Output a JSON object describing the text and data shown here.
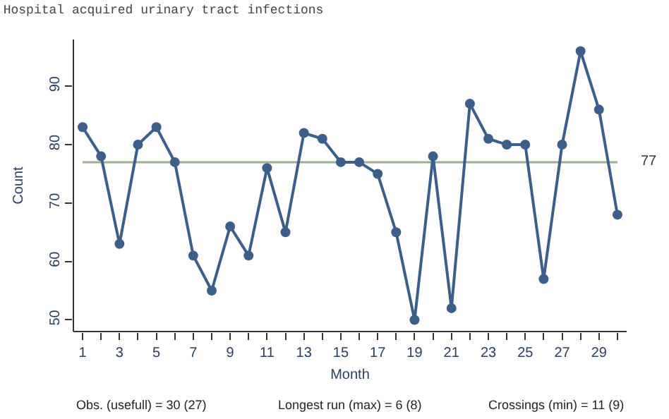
{
  "chart_data": {
    "type": "line",
    "title": "Hospital acquired urinary tract infections",
    "xlabel": "Month",
    "ylabel": "Count",
    "x": [
      1,
      2,
      3,
      4,
      5,
      6,
      7,
      8,
      9,
      10,
      11,
      12,
      13,
      14,
      15,
      16,
      17,
      18,
      19,
      20,
      21,
      22,
      23,
      24,
      25,
      26,
      27,
      28,
      29,
      30
    ],
    "series": [
      {
        "color": "#3b5f8a",
        "values": [
          83,
          78,
          63,
          80,
          83,
          77,
          61,
          55,
          66,
          61,
          76,
          65,
          82,
          81,
          77,
          77,
          75,
          65,
          50,
          78,
          52,
          87,
          81,
          80,
          80,
          57,
          80,
          96,
          86,
          68
        ]
      }
    ],
    "marker": "circle",
    "line_style": "solid",
    "grid": false,
    "xlim": [
      0.5,
      30.5
    ],
    "ylim": [
      48,
      98
    ],
    "xticks": [
      1,
      {
        "value": 2,
        "label": null
      },
      3,
      {
        "value": 4,
        "label": null
      },
      5,
      {
        "value": 6,
        "label": null
      },
      7,
      {
        "value": 8,
        "label": null
      },
      9,
      {
        "value": 10,
        "label": null
      },
      11,
      {
        "value": 12,
        "label": null
      },
      13,
      {
        "value": 14,
        "label": null
      },
      15,
      {
        "value": 16,
        "label": null
      },
      17,
      {
        "value": 18,
        "label": null
      },
      19,
      {
        "value": 20,
        "label": null
      },
      21,
      {
        "value": 22,
        "label": null
      },
      23,
      {
        "value": 24,
        "label": null
      },
      25,
      {
        "value": 26,
        "label": null
      },
      27,
      {
        "value": 28,
        "label": null
      },
      29,
      {
        "value": 30,
        "label": null
      }
    ],
    "yticks": [
      50,
      60,
      70,
      80,
      90
    ],
    "ref_lines": [
      {
        "axis": "y",
        "value": 77,
        "label": "77",
        "color": "#9db08f"
      }
    ],
    "annotations": [
      "Obs. (usefull) = 30 (27)",
      "Longest run (max) = 6 (8)",
      "Crossings (min) = 11 (9)"
    ]
  }
}
